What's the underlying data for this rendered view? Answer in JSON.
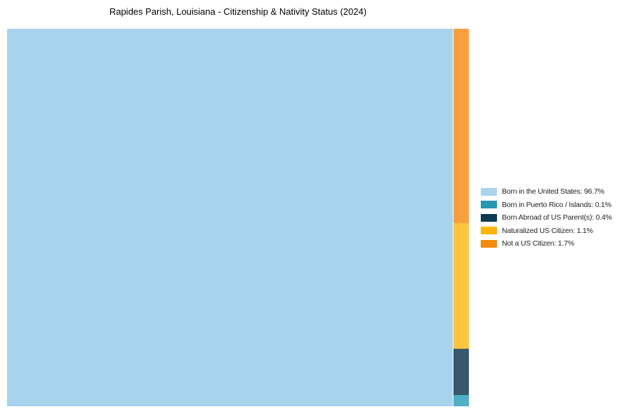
{
  "title": "Rapides Parish, Louisiana - Citizenship & Nativity Status (2024)",
  "colors": {
    "background": "#ffffff",
    "title_text": "#000000",
    "legend_text": "#222222"
  },
  "chart_data": {
    "type": "treemap",
    "title": "Rapides Parish, Louisiana - Citizenship & Nativity Status (2024)",
    "unit": "%",
    "categories": [
      "Born in the United States",
      "Born in Puerto Rico / Islands",
      "Born Abroad of US Parent(s)",
      "Naturalized US Citizen",
      "Not a US Citizen"
    ],
    "values": [
      96.7,
      0.1,
      0.4,
      1.1,
      1.7
    ],
    "legend_position": "right-center",
    "layout_note": "Main rectangle on left holds Born in the United States (96.7%); remaining 3.3% forms a narrow right column stacked top-to-bottom: Not a US Citizen, Naturalized US Citizen, Born Abroad of US Parent(s), Born in Puerto Rico / Islands"
  },
  "treemap": {
    "main": {
      "name": "born-in-us",
      "label": "Born in the United States",
      "value": 96.7,
      "color": "#a7d3ec"
    },
    "column_segments": [
      {
        "name": "not-a-us-citizen",
        "label": "Not a US Citizen",
        "value": 1.7,
        "color": "#f9a03c"
      },
      {
        "name": "naturalized-us-citizen",
        "label": "Naturalized US Citizen",
        "value": 1.1,
        "color": "#fec53c"
      },
      {
        "name": "born-abroad-us-parents",
        "label": "Born Abroad of US Parent(s)",
        "value": 0.4,
        "color": "#36596c"
      },
      {
        "name": "born-puerto-rico-islands",
        "label": "Born in Puerto Rico / Islands",
        "value": 0.1,
        "color": "#4db2c4"
      }
    ]
  },
  "legend": {
    "items": [
      {
        "name": "born-in-us",
        "label": "Born in the United States: 96.7%",
        "color": "#a9d4ec"
      },
      {
        "name": "born-puerto-rico-islands",
        "label": "Born in Puerto Rico / Islands: 0.1%",
        "color": "#2497b1"
      },
      {
        "name": "born-abroad-us-parents",
        "label": "Born Abroad of US Parent(s): 0.4%",
        "color": "#0d3a50"
      },
      {
        "name": "naturalized-us-citizen",
        "label": "Naturalized US Citizen: 1.1%",
        "color": "#feb60a"
      },
      {
        "name": "not-a-us-citizen",
        "label": "Not a US Citizen: 1.7%",
        "color": "#f68a0a"
      }
    ]
  }
}
